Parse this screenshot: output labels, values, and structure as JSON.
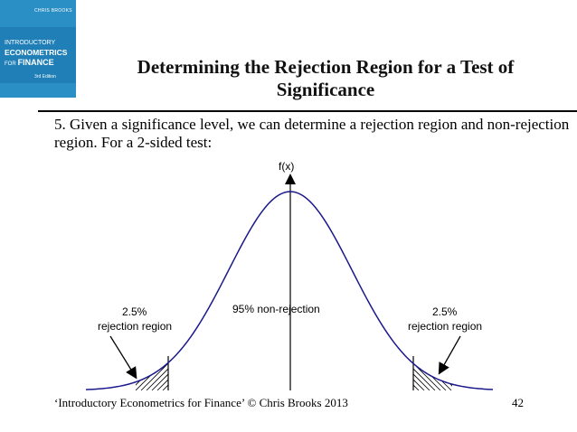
{
  "book_cover": {
    "author": "CHRIS BROOKS",
    "title_line1": "INTRODUCTORY",
    "title_line2": "ECONOMETRICS",
    "title_line3_for": "FOR",
    "title_line3": "FINANCE",
    "edition": "3rd Edition",
    "color": "#2a8fc4"
  },
  "slide": {
    "title": "Determining the Rejection Region for a Test of Significance",
    "body": "5. Given a significance level, we can determine a rejection region and non-rejection region. For a 2-sided test:"
  },
  "diagram": {
    "y_axis_label": "f(x)",
    "left_region_label_pct": "2.5%",
    "left_region_label_text": "rejection region",
    "center_label": "95% non-rejection",
    "right_region_label_pct": "2.5%",
    "right_region_label_text": "rejection region",
    "curve_color": "#1a1a8c"
  },
  "footer": {
    "credit": "‘Introductory Econometrics for Finance’ © Chris Brooks 2013",
    "page_number": "42"
  }
}
